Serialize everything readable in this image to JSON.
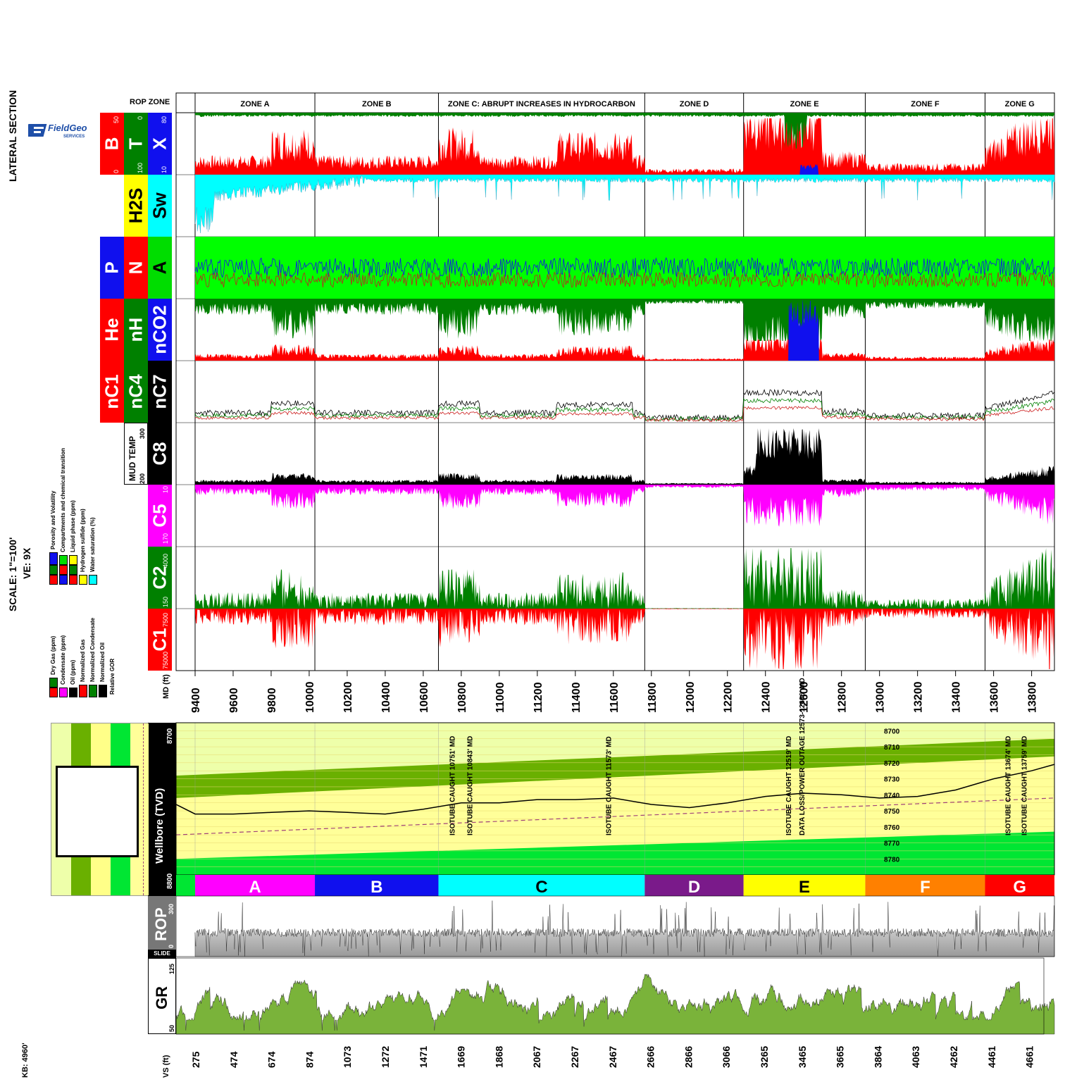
{
  "title": "LATERAL SECTION",
  "logo": {
    "text": "FieldGeo",
    "subtext": "SERVICES"
  },
  "scale": "SCALE: 1\"=100'",
  "ve": "VE: 9X",
  "kb": "KB: 4960'",
  "rop_zone_header": "ROP ZONE",
  "zones": [
    {
      "name": "ZONE A",
      "letter": "A",
      "md_start": 9400,
      "md_end": 10030,
      "color": "#ff00ff"
    },
    {
      "name": "ZONE B",
      "letter": "B",
      "md_start": 10030,
      "md_end": 10680,
      "color": "#1010ee"
    },
    {
      "name": "ZONE C: ABRUPT INCREASES IN HYDROCARBON",
      "letter": "C",
      "md_start": 10680,
      "md_end": 11765,
      "color": "#00ffff"
    },
    {
      "name": "ZONE D",
      "letter": "D",
      "md_start": 11765,
      "md_end": 12285,
      "color": "#7a1a8a"
    },
    {
      "name": "ZONE E",
      "letter": "E",
      "md_start": 12285,
      "md_end": 12925,
      "color": "#ffff00"
    },
    {
      "name": "ZONE F",
      "letter": "F",
      "md_start": 12925,
      "md_end": 13555,
      "color": "#ff8000"
    },
    {
      "name": "ZONE G",
      "letter": "G",
      "md_start": 13555,
      "md_end": 13920,
      "color": "#ff0000"
    }
  ],
  "tracks": {
    "btx": {
      "labels": [
        "B",
        "T",
        "X"
      ],
      "scales": [
        "0",
        "50",
        "100",
        "0",
        "10",
        "80"
      ],
      "colors": [
        "#ff0000",
        "#008000",
        "#1010ee"
      ]
    },
    "h2s_sw": {
      "labels": [
        "H2S",
        "Sw"
      ],
      "scales": [
        "0",
        "15",
        "10",
        "100"
      ],
      "colors": [
        "#ffff00",
        "#00ffff"
      ]
    },
    "pna": {
      "labels": [
        "P",
        "N",
        "A"
      ],
      "colors": [
        "#1010ee",
        "#ff0000",
        "#00dd00"
      ]
    },
    "he_nh_nco2": {
      "labels": [
        "He",
        "nH",
        "nCO2"
      ],
      "scales": [
        "5",
        "48"
      ],
      "colors": [
        "#ff0000",
        "#008000",
        "#1010ee"
      ]
    },
    "nc": {
      "labels": [
        "nC1",
        "nC4",
        "nC7"
      ],
      "colors": [
        "#ff0000",
        "#008000",
        "#000000"
      ]
    },
    "mud_temp": {
      "label": "MUD TEMP",
      "scales": [
        "200",
        "300"
      ]
    },
    "c8": {
      "label": "C8",
      "scales": [
        "1",
        "10"
      ]
    },
    "c5": {
      "label": "C5",
      "scales": [
        "10",
        "170"
      ]
    },
    "c2": {
      "label": "C2",
      "scales": [
        "150",
        "4000"
      ]
    },
    "c1": {
      "label": "C1",
      "scales": [
        "7500",
        "75000"
      ]
    }
  },
  "legend_left": [
    {
      "tags": [
        "C1",
        "C2"
      ],
      "text": "Dry Gas (ppm)"
    },
    {
      "tags": [
        "C5"
      ],
      "text": "Condensate (ppm)"
    },
    {
      "tags": [
        "C8"
      ],
      "text": "Oil (ppm)"
    },
    {
      "tags": [
        "nC1"
      ],
      "text": "Normalized Gas"
    },
    {
      "tags": [
        "nC4"
      ],
      "text": "Normalized Condensate"
    },
    {
      "tags": [
        "nC7"
      ],
      "text": "Normalized Oil"
    },
    {
      "tags": [],
      "text": "Relative GOR"
    }
  ],
  "legend_right": [
    {
      "tags": [
        "He",
        "nH",
        "nCO2"
      ],
      "text": "Porosity and Volatility"
    },
    {
      "tags": [
        "P",
        "N",
        "A"
      ],
      "text": "Compartments and chemical transition"
    },
    {
      "tags": [
        "B",
        "T",
        "X"
      ],
      "text": "Liquid phase (ppm)"
    },
    {
      "tags": [
        "X"
      ],
      "text": "Hydrogen sulfide (ppm)"
    },
    {
      "tags": [
        "Sw"
      ],
      "text": "Water saturation (%)"
    }
  ],
  "md_axis": {
    "label": "MD (ft)",
    "ticks": [
      "9400",
      "9600",
      "9800",
      "10000",
      "10200",
      "10400",
      "10600",
      "10800",
      "11000",
      "11200",
      "11400",
      "11600",
      "11800",
      "12000",
      "12200",
      "12400",
      "12600",
      "12800",
      "13000",
      "13200",
      "13400",
      "13600",
      "13800"
    ]
  },
  "vs_axis": {
    "label": "VS (ft)",
    "ticks": [
      "275",
      "474",
      "674",
      "874",
      "1073",
      "1272",
      "1471",
      "1669",
      "1868",
      "2067",
      "2267",
      "2467",
      "2666",
      "2866",
      "3066",
      "3265",
      "3465",
      "3665",
      "3864",
      "4063",
      "4262",
      "4461",
      "4661"
    ]
  },
  "wellbore": {
    "label": "Wellbore (TVD)",
    "top": "8700",
    "bottom": "8800",
    "tvd_labels": [
      "8700",
      "8710",
      "8720",
      "8730",
      "8740",
      "8750",
      "8760",
      "8770",
      "8780"
    ]
  },
  "annotations": [
    {
      "text": "ISOTUBE CAUGHT 10751' MD",
      "md": 10751
    },
    {
      "text": "ISOTUBE CAUGHT 10843' MD",
      "md": 10843
    },
    {
      "text": "ISOTUBE CAUGHT 11573' MD",
      "md": 11573
    },
    {
      "text": "ISOTUBE CAUGHT 12519' MD",
      "md": 12519
    },
    {
      "text": "DATA LOSS/POWER OUTAGE 12573-12606' MD",
      "md": 12590
    },
    {
      "text": "ISOTUBE CAUGHT 13674' MD",
      "md": 13674
    },
    {
      "text": "ISOTUBE CAUGHT 13759' MD",
      "md": 13759
    }
  ],
  "rop": {
    "label": "ROP",
    "scales": [
      "0",
      "300"
    ],
    "slide": "SLIDE"
  },
  "gr": {
    "label": "GR",
    "scales": [
      "50",
      "125"
    ]
  },
  "chart_data": {
    "type": "area",
    "title": "LATERAL SECTION",
    "xlabel": "MD (ft)",
    "xlim": [
      9300,
      13920
    ],
    "wellbore_tvd": {
      "md": [
        9300,
        9400,
        9600,
        9800,
        10000,
        10200,
        10400,
        10600,
        10800,
        11000,
        11200,
        11400,
        11600,
        11800,
        12000,
        12200,
        12400,
        12600,
        12800,
        13000,
        13200,
        13400,
        13600,
        13800,
        13920
      ],
      "tvd": [
        8746,
        8752,
        8752,
        8751,
        8750,
        8751,
        8752,
        8749,
        8745,
        8745,
        8743,
        8743,
        8742,
        8746,
        8748,
        8745,
        8741,
        8739,
        8740,
        8742,
        8741,
        8737,
        8730,
        8725,
        8721
      ]
    },
    "zone_boundaries_md": [
      9400,
      10030,
      10680,
      11765,
      12285,
      12925,
      13555
    ]
  }
}
